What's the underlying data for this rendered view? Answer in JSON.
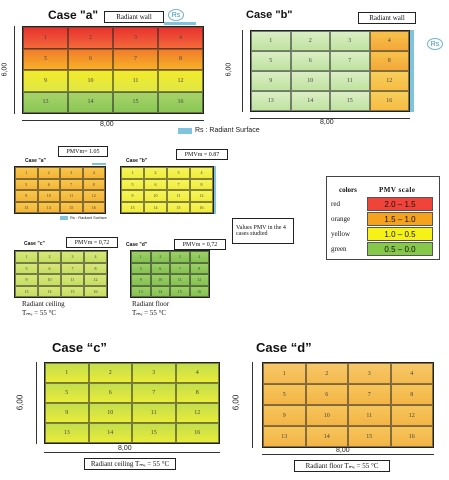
{
  "top": {
    "case_a": {
      "title": "Case \"a\"",
      "wall_label": "Radiant wall",
      "rs_tag": "Rs"
    },
    "case_b": {
      "title": "Case \"b\"",
      "wall_label": "Radiant wall",
      "rs_tag": "Rs"
    },
    "dim_height": "6,00",
    "dim_width": "8,00",
    "rs_caption": "Rs : Radiant Surface",
    "cell_numbers": [
      "1",
      "2",
      "3",
      "4",
      "5",
      "6",
      "7",
      "8",
      "9",
      "10",
      "11",
      "12",
      "13",
      "14",
      "15",
      "16"
    ]
  },
  "middle": {
    "pmv_a": "PMVm= 1.05",
    "pmv_b": "PMVm = 0.87",
    "pmv_c": "PMVm = 0,72",
    "pmv_d": "PMVm = 0,72",
    "mini_case_a": "Case \"a\"",
    "mini_case_b": "Case \"b\"",
    "mini_case_c": "Case \"c\"",
    "mini_case_d": "Case \"d\"",
    "mini_rs": "Rs : Radiant Surface",
    "values_note_1": "Values PMV in the 4",
    "values_note_2": "cases studied",
    "radiant_ceiling": "Radiant    ceiling",
    "radiant_ceiling_temp": "Tₘₑ = 55 °C",
    "radiant_floor": "Radiant    floor",
    "radiant_floor_temp": "Tₘₑ = 55 °C"
  },
  "legend": {
    "col_colors": "colors",
    "col_scale": "PMV scale",
    "rows": [
      {
        "color_name": "red",
        "range": "2.0 – 1.5",
        "hex": "#f0443a"
      },
      {
        "color_name": "orange",
        "range": "1.5 – 1.0",
        "hex": "#f7a21c"
      },
      {
        "color_name": "yellow",
        "range": "1.0 – 0.5",
        "hex": "#f6f218"
      },
      {
        "color_name": "green",
        "range": "0.5 – 0.0",
        "hex": "#86c84a"
      }
    ]
  },
  "bottom": {
    "case_c": {
      "title": "Case “c”",
      "caption": "Radiant  ceiling  Tₘₑ = 55 °C"
    },
    "case_d": {
      "title": "Case “d”",
      "caption": "Radiant  floor  Tₘₑ = 55 °C"
    },
    "dim_height": "6,00",
    "dim_width": "8,00"
  },
  "colors": {
    "red": "#ea3b36",
    "orange": "#f4a321",
    "yellow": "#eeed3a",
    "green": "#8ccb55",
    "lightgreen": "#c8e6a4",
    "rs_blue": "#7fc3df"
  }
}
